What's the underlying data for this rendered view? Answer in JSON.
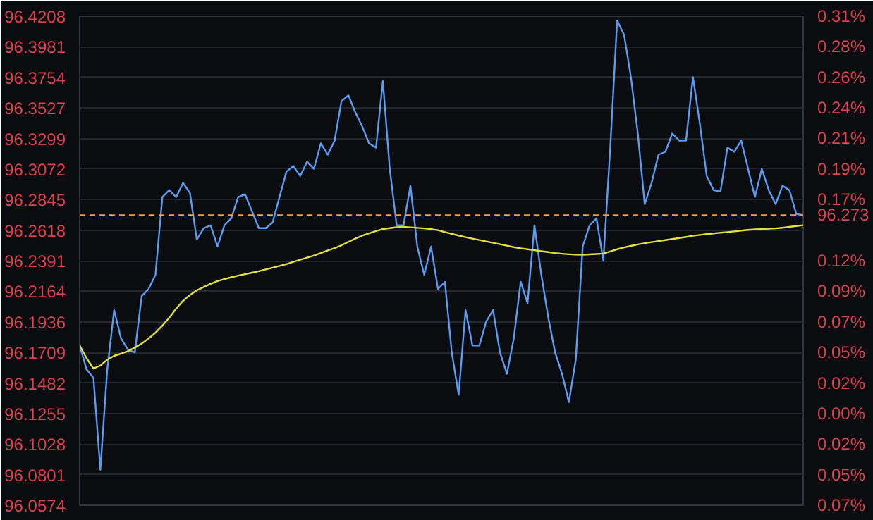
{
  "chart_data": {
    "type": "line",
    "categories": [
      null,
      null,
      null,
      null,
      null,
      null,
      null,
      null,
      null,
      null,
      null,
      null,
      null,
      null,
      null,
      null,
      null,
      null,
      null,
      null,
      null,
      null,
      null,
      null,
      null,
      null,
      null,
      null,
      null,
      null,
      null,
      null,
      null,
      null,
      null,
      null,
      null,
      null,
      null,
      null,
      null,
      null,
      null,
      null,
      null,
      null,
      null,
      null,
      null,
      null,
      null,
      null,
      null,
      null,
      null,
      null,
      null,
      null,
      null,
      null,
      null,
      null,
      null,
      null,
      null,
      null,
      null,
      null,
      null,
      null,
      null,
      null,
      null,
      null,
      null,
      null,
      null,
      null,
      null,
      null,
      null,
      null,
      null,
      null,
      null,
      null,
      null,
      null,
      null,
      null,
      null,
      null,
      null,
      null,
      null,
      null,
      null,
      null,
      null,
      null,
      null,
      null,
      null,
      null,
      null,
      null
    ],
    "ylim": [
      96.0574,
      96.4208
    ],
    "yticks": [
      96.0574,
      96.0801,
      96.1028,
      96.1255,
      96.1482,
      96.1709,
      96.1936,
      96.2164,
      96.2391,
      96.2618,
      96.2845,
      96.3072,
      96.3299,
      96.3527,
      96.3754,
      96.3981,
      96.4208
    ],
    "y2lim": [
      -0.0709,
      0.3072
    ],
    "y2ticks": [
      {
        "value": -0.0709,
        "label": "0.07%"
      },
      {
        "value": -0.0473,
        "label": "0.05%"
      },
      {
        "value": -0.0236,
        "label": "0.02%"
      },
      {
        "value": 0,
        "label": "0.00%"
      },
      {
        "value": 0.0236,
        "label": "0.02%"
      },
      {
        "value": 0.0473,
        "label": "0.05%"
      },
      {
        "value": 0.0709,
        "label": "0.07%"
      },
      {
        "value": 0.0945,
        "label": "0.09%"
      },
      {
        "value": 0.1181,
        "label": "0.12%"
      },
      {
        "value": 0.1418,
        "label": null
      },
      {
        "value": 0.1654,
        "label": "0.17%"
      },
      {
        "value": 0.189,
        "label": "0.19%"
      },
      {
        "value": 0.2127,
        "label": "0.21%"
      },
      {
        "value": 0.2363,
        "label": "0.24%"
      },
      {
        "value": 0.2599,
        "label": "0.26%"
      },
      {
        "value": 0.2836,
        "label": "0.28%"
      },
      {
        "value": 0.3072,
        "label": "0.31%"
      }
    ],
    "grid": "y",
    "ref_lines": [
      {
        "axis": "y",
        "value": 96.273,
        "label": "96.273",
        "color": "#e8a050",
        "line_style": "dashed"
      }
    ],
    "series": [
      {
        "color": "#5b9cf0",
        "values": [
          96.1761,
          96.1583,
          96.152,
          96.0837,
          96.1583,
          96.2024,
          96.1814,
          96.173,
          96.1709,
          96.2129,
          96.2181,
          96.2286,
          96.2864,
          96.2916,
          96.2864,
          96.2969,
          96.2895,
          96.2549,
          96.2633,
          96.2654,
          96.2496,
          96.2654,
          96.2706,
          96.2864,
          96.2885,
          96.2759,
          96.2633,
          96.2633,
          96.2675,
          96.2864,
          96.3053,
          96.3095,
          96.3021,
          96.3126,
          96.3074,
          96.3263,
          96.3179,
          96.3284,
          96.3578,
          96.362,
          96.3494,
          96.3389,
          96.3263,
          96.3231,
          96.3725,
          96.3074,
          96.2654,
          96.2654,
          96.2948,
          96.2496,
          96.2286,
          96.2496,
          96.2181,
          96.2234,
          96.1709,
          96.1394,
          96.2024,
          96.1761,
          96.1761,
          96.194,
          96.2024,
          96.1709,
          96.1551,
          96.1814,
          96.2234,
          96.2076,
          96.2654,
          96.2286,
          96.1971,
          96.1709,
          96.1551,
          96.1341,
          96.1656,
          96.2496,
          96.2654,
          96.2706,
          96.2391,
          96.3231,
          96.4176,
          96.4071,
          96.3756,
          96.3336,
          96.2811,
          96.2969,
          96.3179,
          96.32,
          96.3336,
          96.3284,
          96.3284,
          96.3756,
          96.341,
          96.3021,
          96.2916,
          96.2906,
          96.3231,
          96.32,
          96.3284,
          96.3074,
          96.2864,
          96.3074,
          96.2916,
          96.2811,
          96.2948,
          96.2916,
          96.2738,
          96.273
        ]
      },
      {
        "color": "#e0e040",
        "values": [
          96.1761,
          96.1667,
          96.159,
          96.1612,
          96.1655,
          96.1684,
          96.17,
          96.1719,
          96.1745,
          96.1776,
          96.1813,
          96.1856,
          96.1909,
          96.1967,
          96.2035,
          96.2093,
          96.2136,
          96.2171,
          96.2195,
          96.2219,
          96.224,
          96.2254,
          96.2268,
          96.228,
          96.2291,
          96.2302,
          96.2313,
          96.2326,
          96.2339,
          96.2352,
          96.2366,
          96.2382,
          96.2398,
          96.2414,
          96.243,
          96.2448,
          96.2467,
          96.2485,
          96.2506,
          96.2531,
          96.2555,
          96.2577,
          96.2595,
          96.2612,
          96.2626,
          96.2633,
          96.264,
          96.2643,
          96.2639,
          96.2635,
          96.2631,
          96.2626,
          96.2618,
          96.2604,
          96.2591,
          96.2578,
          96.2566,
          96.2555,
          96.2545,
          96.2534,
          96.2524,
          96.2513,
          96.2503,
          96.2492,
          96.2483,
          96.2476,
          96.2469,
          96.2462,
          96.2455,
          96.2448,
          96.2443,
          96.2439,
          96.2436,
          96.2435,
          96.2438,
          96.2441,
          96.2444,
          96.246,
          96.2476,
          96.249,
          96.2501,
          96.2512,
          96.2521,
          96.2529,
          96.2537,
          96.2544,
          96.2552,
          96.256,
          96.2568,
          96.2576,
          96.2583,
          96.2589,
          96.2594,
          96.2599,
          96.2604,
          96.2609,
          96.2615,
          96.262,
          96.2624,
          96.2626,
          96.2629,
          96.2631,
          96.2636,
          96.2642,
          96.2649,
          96.2655
        ]
      }
    ]
  }
}
